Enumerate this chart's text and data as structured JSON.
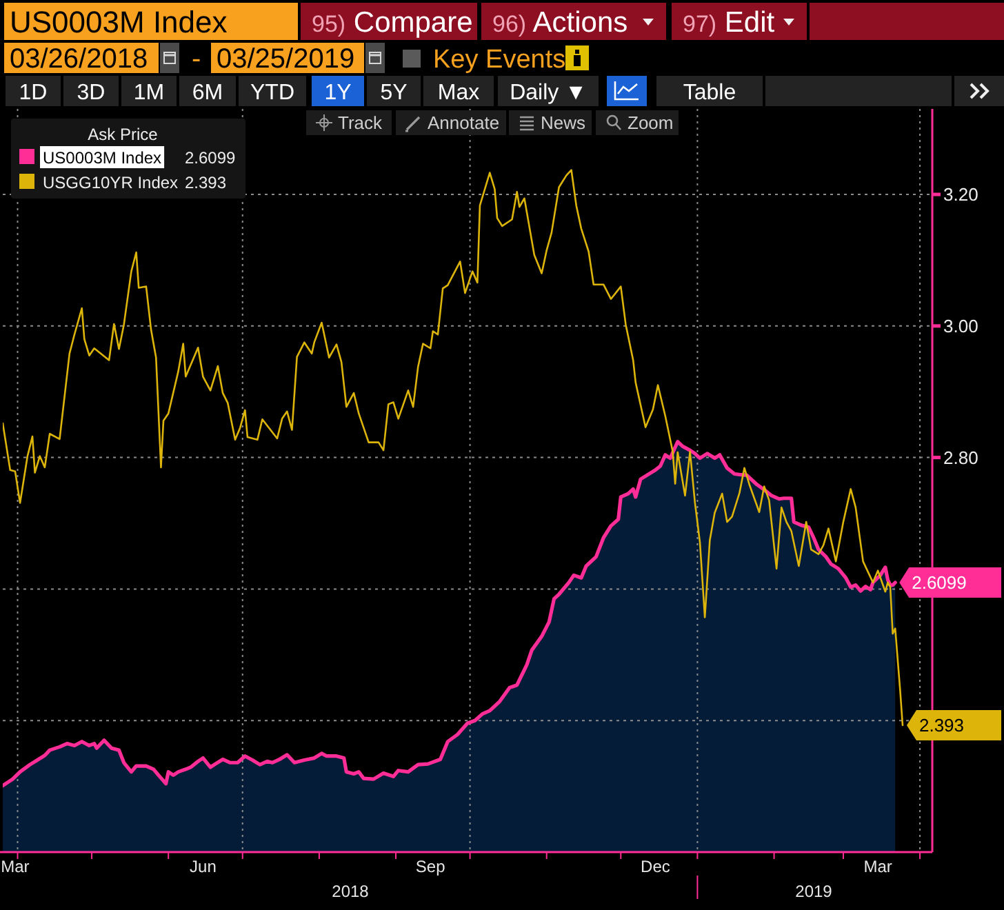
{
  "chart_data": {
    "type": "line",
    "legend_title": "Ask Price",
    "legend": "top left",
    "grid": "y",
    "xlim": [
      "2018-03-26",
      "2019-04-06"
    ],
    "ylim": [
      2.2,
      3.33
    ],
    "xticks": [
      {
        "value": "2018-03-31",
        "label": "Mar"
      },
      {
        "value": "2018-04-01",
        "label": null
      },
      {
        "value": "2018-05-01",
        "label": null
      },
      {
        "value": "2018-06-01",
        "label": null
      },
      {
        "value": "2018-06-15",
        "label": "Jun"
      },
      {
        "value": "2018-07-01",
        "label": null
      },
      {
        "value": "2018-08-01",
        "label": null
      },
      {
        "value": "2018-09-01",
        "label": null
      },
      {
        "value": "2018-09-15",
        "label": "Sep"
      },
      {
        "value": "2018-10-01",
        "label": null
      },
      {
        "value": "2018-11-01",
        "label": null
      },
      {
        "value": "2018-12-01",
        "label": null
      },
      {
        "value": "2018-12-15",
        "label": "Dec"
      },
      {
        "value": "2019-01-01",
        "label": null
      },
      {
        "value": "2019-02-01",
        "label": null
      },
      {
        "value": "2019-03-01",
        "label": null
      },
      {
        "value": "2019-03-15",
        "label": "Mar"
      },
      {
        "value": "2019-04-01",
        "label": null
      }
    ],
    "yticks": [
      {
        "value": 2.4,
        "label": null
      },
      {
        "value": 2.6,
        "label": null
      },
      {
        "value": 2.8,
        "label": "2.80"
      },
      {
        "value": 3.0,
        "label": "3.00"
      },
      {
        "value": 3.2,
        "label": "3.20"
      }
    ],
    "ref_lines": [
      {
        "axis": "x",
        "value": "2018-04-01",
        "color": "#8c8c8c",
        "line_style": "dotted"
      },
      {
        "axis": "x",
        "value": "2018-07-01",
        "color": "#8c8c8c",
        "line_style": "dotted"
      },
      {
        "axis": "x",
        "value": "2018-10-01",
        "color": "#8c8c8c",
        "line_style": "dotted"
      },
      {
        "axis": "x",
        "value": "2019-01-01",
        "color": "#8c8c8c",
        "line_style": "dotted"
      },
      {
        "axis": "x",
        "value": "2019-04-01",
        "color": "#8c8c8c",
        "line_style": "dotted"
      }
    ],
    "annotations": [
      "US0003M Index",
      "95) Compare",
      "96) Actions",
      "97) Edit",
      "03/26/2018",
      "-",
      "03/25/2019",
      "Key Events",
      "1D",
      "3D",
      "1M",
      "6M",
      "YTD",
      "1Y",
      "5Y",
      "Max",
      "Daily ▼",
      "Table",
      "Track",
      "Annotate",
      "News",
      "Zoom",
      "2018",
      "2019"
    ],
    "series": [
      {
        "type": "area",
        "color": "#041c38",
        "x": [
          "2018-03-26",
          "2018-03-30",
          "2018-04-02",
          "2018-04-06",
          "2018-04-09",
          "2018-04-12",
          "2018-04-14",
          "2018-04-18",
          "2018-04-21",
          "2018-04-24",
          "2018-04-27",
          "2018-04-30",
          "2018-05-02",
          "2018-05-03",
          "2018-05-06",
          "2018-05-09",
          "2018-05-12",
          "2018-05-14",
          "2018-05-17",
          "2018-05-19",
          "2018-05-23",
          "2018-05-26",
          "2018-05-28",
          "2018-05-31",
          "2018-06-01",
          "2018-06-03",
          "2018-06-05",
          "2018-06-08",
          "2018-06-10",
          "2018-06-13",
          "2018-06-15",
          "2018-06-18",
          "2018-06-20",
          "2018-06-23",
          "2018-06-26",
          "2018-06-29",
          "2018-07-02",
          "2018-07-05",
          "2018-07-08",
          "2018-07-11",
          "2018-07-13",
          "2018-07-16",
          "2018-07-19",
          "2018-07-22",
          "2018-07-26",
          "2018-07-30",
          "2018-08-02",
          "2018-08-04",
          "2018-08-08",
          "2018-08-11",
          "2018-08-12",
          "2018-08-15",
          "2018-08-17",
          "2018-08-19",
          "2018-08-23",
          "2018-08-27",
          "2018-08-31",
          "2018-09-02",
          "2018-09-06",
          "2018-09-10",
          "2018-09-14",
          "2018-09-19",
          "2018-09-22",
          "2018-09-26",
          "2018-09-30",
          "2018-10-03",
          "2018-10-06",
          "2018-10-09",
          "2018-10-13",
          "2018-10-17",
          "2018-10-20",
          "2018-10-24",
          "2018-10-26",
          "2018-10-30",
          "2018-11-02",
          "2018-11-04",
          "2018-11-06",
          "2018-11-10",
          "2018-11-12",
          "2018-11-15",
          "2018-11-17",
          "2018-11-21",
          "2018-11-24",
          "2018-11-27",
          "2018-11-30",
          "2018-12-01",
          "2018-12-04",
          "2018-12-06",
          "2018-12-07",
          "2018-12-09",
          "2018-12-12",
          "2018-12-15",
          "2018-12-17",
          "2018-12-19",
          "2018-12-21",
          "2018-12-24",
          "2018-12-26",
          "2018-12-29",
          "2018-12-31",
          "2019-01-02",
          "2019-01-05",
          "2019-01-08",
          "2019-01-10",
          "2019-01-13",
          "2019-01-16",
          "2019-01-18",
          "2019-01-21",
          "2019-01-25",
          "2019-01-28",
          "2019-01-31",
          "2019-02-03",
          "2019-02-05",
          "2019-02-08",
          "2019-02-09",
          "2019-02-12",
          "2019-02-15",
          "2019-02-17",
          "2019-02-19",
          "2019-02-22",
          "2019-02-24",
          "2019-02-27",
          "2019-03-02",
          "2019-03-04",
          "2019-03-06",
          "2019-03-08",
          "2019-03-10",
          "2019-03-12",
          "2019-03-13",
          "2019-03-16",
          "2019-03-18",
          "2019-03-19",
          "2019-03-20",
          "2019-03-21",
          "2019-03-22"
        ],
        "values": [
          2.301,
          2.311,
          2.322,
          2.333,
          2.34,
          2.347,
          2.355,
          2.36,
          2.365,
          2.362,
          2.368,
          2.362,
          2.365,
          2.358,
          2.37,
          2.358,
          2.355,
          2.336,
          2.322,
          2.331,
          2.331,
          2.326,
          2.317,
          2.304,
          2.322,
          2.317,
          2.322,
          2.326,
          2.329,
          2.338,
          2.343,
          2.329,
          2.334,
          2.341,
          2.336,
          2.336,
          2.346,
          2.34,
          2.333,
          2.338,
          2.336,
          2.341,
          2.348,
          2.336,
          2.34,
          2.343,
          2.35,
          2.346,
          2.346,
          2.343,
          2.322,
          2.319,
          2.322,
          2.312,
          2.311,
          2.32,
          2.315,
          2.324,
          2.322,
          2.333,
          2.334,
          2.341,
          2.368,
          2.379,
          2.396,
          2.4,
          2.41,
          2.415,
          2.429,
          2.45,
          2.454,
          2.485,
          2.507,
          2.528,
          2.55,
          2.585,
          2.592,
          2.61,
          2.621,
          2.617,
          2.635,
          2.649,
          2.678,
          2.696,
          2.706,
          2.74,
          2.745,
          2.752,
          2.74,
          2.767,
          2.774,
          2.781,
          2.787,
          2.804,
          2.799,
          2.824,
          2.817,
          2.811,
          2.806,
          2.799,
          2.806,
          2.799,
          2.804,
          2.784,
          2.775,
          2.774,
          2.773,
          2.759,
          2.751,
          2.742,
          2.737,
          2.738,
          2.738,
          2.702,
          2.697,
          2.694,
          2.678,
          2.66,
          2.649,
          2.638,
          2.631,
          2.617,
          2.603,
          2.606,
          2.597,
          2.604,
          2.599,
          2.61,
          2.621,
          2.633,
          2.614,
          2.606,
          2.606,
          2.6099
        ]
      },
      {
        "name": "US0003M Index",
        "type": "line",
        "color": "#ff2d96",
        "x": [
          "2018-03-26",
          "2018-03-30",
          "2018-04-02",
          "2018-04-06",
          "2018-04-09",
          "2018-04-12",
          "2018-04-14",
          "2018-04-18",
          "2018-04-21",
          "2018-04-24",
          "2018-04-27",
          "2018-04-30",
          "2018-05-02",
          "2018-05-03",
          "2018-05-06",
          "2018-05-09",
          "2018-05-12",
          "2018-05-14",
          "2018-05-17",
          "2018-05-19",
          "2018-05-23",
          "2018-05-26",
          "2018-05-28",
          "2018-05-31",
          "2018-06-01",
          "2018-06-03",
          "2018-06-05",
          "2018-06-08",
          "2018-06-10",
          "2018-06-13",
          "2018-06-15",
          "2018-06-18",
          "2018-06-20",
          "2018-06-23",
          "2018-06-26",
          "2018-06-29",
          "2018-07-02",
          "2018-07-05",
          "2018-07-08",
          "2018-07-11",
          "2018-07-13",
          "2018-07-16",
          "2018-07-19",
          "2018-07-22",
          "2018-07-26",
          "2018-07-30",
          "2018-08-02",
          "2018-08-04",
          "2018-08-08",
          "2018-08-11",
          "2018-08-12",
          "2018-08-15",
          "2018-08-17",
          "2018-08-19",
          "2018-08-23",
          "2018-08-27",
          "2018-08-31",
          "2018-09-02",
          "2018-09-06",
          "2018-09-10",
          "2018-09-14",
          "2018-09-19",
          "2018-09-22",
          "2018-09-26",
          "2018-09-30",
          "2018-10-03",
          "2018-10-06",
          "2018-10-09",
          "2018-10-13",
          "2018-10-17",
          "2018-10-20",
          "2018-10-24",
          "2018-10-26",
          "2018-10-30",
          "2018-11-02",
          "2018-11-04",
          "2018-11-06",
          "2018-11-10",
          "2018-11-12",
          "2018-11-15",
          "2018-11-17",
          "2018-11-21",
          "2018-11-24",
          "2018-11-27",
          "2018-11-30",
          "2018-12-01",
          "2018-12-04",
          "2018-12-06",
          "2018-12-07",
          "2018-12-09",
          "2018-12-12",
          "2018-12-15",
          "2018-12-17",
          "2018-12-19",
          "2018-12-21",
          "2018-12-24",
          "2018-12-26",
          "2018-12-29",
          "2018-12-31",
          "2019-01-02",
          "2019-01-05",
          "2019-01-08",
          "2019-01-10",
          "2019-01-13",
          "2019-01-16",
          "2019-01-18",
          "2019-01-21",
          "2019-01-25",
          "2019-01-28",
          "2019-01-31",
          "2019-02-03",
          "2019-02-05",
          "2019-02-08",
          "2019-02-09",
          "2019-02-12",
          "2019-02-15",
          "2019-02-17",
          "2019-02-19",
          "2019-02-22",
          "2019-02-24",
          "2019-02-27",
          "2019-03-02",
          "2019-03-04",
          "2019-03-06",
          "2019-03-08",
          "2019-03-10",
          "2019-03-12",
          "2019-03-13",
          "2019-03-16",
          "2019-03-18",
          "2019-03-19",
          "2019-03-20",
          "2019-03-21",
          "2019-03-22"
        ],
        "values": [
          2.301,
          2.311,
          2.322,
          2.333,
          2.34,
          2.347,
          2.355,
          2.36,
          2.365,
          2.362,
          2.368,
          2.362,
          2.365,
          2.358,
          2.37,
          2.358,
          2.355,
          2.336,
          2.322,
          2.331,
          2.331,
          2.326,
          2.317,
          2.304,
          2.322,
          2.317,
          2.322,
          2.326,
          2.329,
          2.338,
          2.343,
          2.329,
          2.334,
          2.341,
          2.336,
          2.336,
          2.346,
          2.34,
          2.333,
          2.338,
          2.336,
          2.341,
          2.348,
          2.336,
          2.34,
          2.343,
          2.35,
          2.346,
          2.346,
          2.343,
          2.322,
          2.319,
          2.322,
          2.312,
          2.311,
          2.32,
          2.315,
          2.324,
          2.322,
          2.333,
          2.334,
          2.341,
          2.368,
          2.379,
          2.396,
          2.4,
          2.41,
          2.415,
          2.429,
          2.45,
          2.454,
          2.485,
          2.507,
          2.528,
          2.55,
          2.585,
          2.592,
          2.61,
          2.621,
          2.617,
          2.635,
          2.649,
          2.678,
          2.696,
          2.706,
          2.74,
          2.745,
          2.752,
          2.74,
          2.767,
          2.774,
          2.781,
          2.787,
          2.804,
          2.799,
          2.824,
          2.817,
          2.811,
          2.806,
          2.799,
          2.806,
          2.799,
          2.804,
          2.784,
          2.775,
          2.774,
          2.773,
          2.759,
          2.751,
          2.742,
          2.737,
          2.738,
          2.738,
          2.702,
          2.697,
          2.694,
          2.678,
          2.66,
          2.649,
          2.638,
          2.631,
          2.617,
          2.603,
          2.606,
          2.597,
          2.604,
          2.599,
          2.61,
          2.621,
          2.633,
          2.614,
          2.606,
          2.606,
          2.6099
        ],
        "value_labels": [
          null,
          null,
          null,
          null,
          null,
          null,
          null,
          null,
          null,
          null,
          null,
          null,
          null,
          null,
          null,
          null,
          null,
          null,
          null,
          null,
          null,
          null,
          null,
          null,
          null,
          null,
          null,
          null,
          null,
          null,
          null,
          null,
          null,
          null,
          null,
          null,
          null,
          null,
          null,
          null,
          null,
          null,
          null,
          null,
          null,
          null,
          null,
          null,
          null,
          null,
          null,
          null,
          null,
          null,
          null,
          null,
          null,
          null,
          null,
          null,
          null,
          null,
          null,
          null,
          null,
          null,
          null,
          null,
          null,
          null,
          null,
          null,
          null,
          null,
          null,
          null,
          null,
          null,
          null,
          null,
          null,
          null,
          null,
          null,
          null,
          null,
          null,
          null,
          null,
          null,
          null,
          null,
          null,
          null,
          null,
          null,
          null,
          null,
          null,
          null,
          null,
          null,
          null,
          null,
          null,
          null,
          null,
          null,
          null,
          null,
          null,
          null,
          null,
          null,
          null,
          null,
          null,
          null,
          null,
          null,
          null,
          null,
          null,
          null,
          null,
          null,
          null,
          null,
          null,
          null,
          null,
          null,
          null,
          "2.6099"
        ]
      },
      {
        "name": "USGG10YR Index",
        "type": "line",
        "color": "#dcb40a",
        "x": [
          "2018-03-26",
          "2018-03-29",
          "2018-03-31",
          "2018-04-02",
          "2018-04-05",
          "2018-04-07",
          "2018-04-08",
          "2018-04-10",
          "2018-04-12",
          "2018-04-14",
          "2018-04-18",
          "2018-04-22",
          "2018-04-24",
          "2018-04-27",
          "2018-04-28",
          "2018-04-30",
          "2018-05-02",
          "2018-05-08",
          "2018-05-10",
          "2018-05-12",
          "2018-05-14",
          "2018-05-17",
          "2018-05-19",
          "2018-05-20",
          "2018-05-23",
          "2018-05-25",
          "2018-05-27",
          "2018-05-29",
          "2018-05-30",
          "2018-06-01",
          "2018-06-05",
          "2018-06-07",
          "2018-06-08",
          "2018-06-13",
          "2018-06-15",
          "2018-06-18",
          "2018-06-21",
          "2018-06-23",
          "2018-06-25",
          "2018-06-28",
          "2018-06-30",
          "2018-07-02",
          "2018-07-03",
          "2018-07-07",
          "2018-07-09",
          "2018-07-15",
          "2018-07-17",
          "2018-07-19",
          "2018-07-21",
          "2018-07-23",
          "2018-07-26",
          "2018-07-29",
          "2018-07-30",
          "2018-08-02",
          "2018-08-05",
          "2018-08-08",
          "2018-08-10",
          "2018-08-12",
          "2018-08-15",
          "2018-08-17",
          "2018-08-21",
          "2018-08-25",
          "2018-08-27",
          "2018-08-29",
          "2018-08-31",
          "2018-09-02",
          "2018-09-06",
          "2018-09-08",
          "2018-09-10",
          "2018-09-12",
          "2018-09-15",
          "2018-09-16",
          "2018-09-18",
          "2018-09-20",
          "2018-09-22",
          "2018-09-27",
          "2018-09-29",
          "2018-10-02",
          "2018-10-04",
          "2018-10-05",
          "2018-10-09",
          "2018-10-11",
          "2018-10-12",
          "2018-10-14",
          "2018-10-18",
          "2018-10-20",
          "2018-10-21",
          "2018-10-23",
          "2018-10-27",
          "2018-10-30",
          "2018-11-01",
          "2018-11-03",
          "2018-11-06",
          "2018-11-09",
          "2018-11-11",
          "2018-11-13",
          "2018-11-15",
          "2018-11-18",
          "2018-11-20",
          "2018-11-24",
          "2018-11-27",
          "2018-12-01",
          "2018-12-03",
          "2018-12-06",
          "2018-12-07",
          "2018-12-11",
          "2018-12-14",
          "2018-12-16",
          "2018-12-19",
          "2018-12-22",
          "2018-12-23",
          "2018-12-24",
          "2018-12-27",
          "2018-12-29",
          "2018-12-31",
          "2019-01-02",
          "2019-01-04",
          "2019-01-06",
          "2019-01-08",
          "2019-01-11",
          "2019-01-13",
          "2019-01-15",
          "2019-01-18",
          "2019-01-20",
          "2019-01-22",
          "2019-01-26",
          "2019-01-28",
          "2019-01-30",
          "2019-02-02",
          "2019-02-04",
          "2019-02-06",
          "2019-02-08",
          "2019-02-11",
          "2019-02-14",
          "2019-02-16",
          "2019-02-19",
          "2019-02-21",
          "2019-02-23",
          "2019-02-26",
          "2019-03-01",
          "2019-03-04",
          "2019-03-06",
          "2019-03-09",
          "2019-03-13",
          "2019-03-15",
          "2019-03-18",
          "2019-03-19",
          "2019-03-20",
          "2019-03-21",
          "2019-03-22",
          "2019-03-24",
          "2019-03-25"
        ],
        "values": [
          2.852,
          2.781,
          2.779,
          2.731,
          2.802,
          2.832,
          2.777,
          2.802,
          2.785,
          2.836,
          2.828,
          2.958,
          2.987,
          3.027,
          2.98,
          2.955,
          2.966,
          2.948,
          3.003,
          2.965,
          3.002,
          3.083,
          3.112,
          3.058,
          3.06,
          2.994,
          2.952,
          2.785,
          2.856,
          2.867,
          2.931,
          2.973,
          2.923,
          2.967,
          2.923,
          2.902,
          2.939,
          2.898,
          2.883,
          2.827,
          2.845,
          2.872,
          2.831,
          2.827,
          2.858,
          2.829,
          2.859,
          2.87,
          2.842,
          2.953,
          2.975,
          2.958,
          2.975,
          3.005,
          2.952,
          2.972,
          2.945,
          2.877,
          2.898,
          2.867,
          2.823,
          2.823,
          2.811,
          2.881,
          2.884,
          2.859,
          2.902,
          2.877,
          2.938,
          2.973,
          2.966,
          2.992,
          2.987,
          3.057,
          3.062,
          3.098,
          3.05,
          3.083,
          3.066,
          3.183,
          3.233,
          3.208,
          3.164,
          3.152,
          3.162,
          3.204,
          3.181,
          3.194,
          3.108,
          3.08,
          3.115,
          3.142,
          3.211,
          3.229,
          3.237,
          3.183,
          3.148,
          3.113,
          3.063,
          3.063,
          3.041,
          3.06,
          3.002,
          2.948,
          2.914,
          2.846,
          2.873,
          2.91,
          2.863,
          2.809,
          2.76,
          2.808,
          2.742,
          2.809,
          2.731,
          2.671,
          2.557,
          2.674,
          2.716,
          2.745,
          2.702,
          2.71,
          2.746,
          2.784,
          2.759,
          2.717,
          2.756,
          2.735,
          2.631,
          2.724,
          2.702,
          2.688,
          2.635,
          2.702,
          2.66,
          2.653,
          2.667,
          2.692,
          2.642,
          2.702,
          2.752,
          2.724,
          2.642,
          2.61,
          2.628,
          2.596,
          2.61,
          2.603,
          2.532,
          2.54,
          2.446,
          2.393
        ],
        "value_labels": [
          null,
          null,
          null,
          null,
          null,
          null,
          null,
          null,
          null,
          null,
          null,
          null,
          null,
          null,
          null,
          null,
          null,
          null,
          null,
          null,
          null,
          null,
          null,
          null,
          null,
          null,
          null,
          null,
          null,
          null,
          null,
          null,
          null,
          null,
          null,
          null,
          null,
          null,
          null,
          null,
          null,
          null,
          null,
          null,
          null,
          null,
          null,
          null,
          null,
          null,
          null,
          null,
          null,
          null,
          null,
          null,
          null,
          null,
          null,
          null,
          null,
          null,
          null,
          null,
          null,
          null,
          null,
          null,
          null,
          null,
          null,
          null,
          null,
          null,
          null,
          null,
          null,
          null,
          null,
          null,
          null,
          null,
          null,
          null,
          null,
          null,
          null,
          null,
          null,
          null,
          null,
          null,
          null,
          null,
          null,
          null,
          null,
          null,
          null,
          null,
          null,
          null,
          null,
          null,
          null,
          null,
          null,
          null,
          null,
          null,
          null,
          null,
          null,
          null,
          null,
          null,
          null,
          null,
          null,
          null,
          null,
          null,
          null,
          null,
          null,
          null,
          null,
          null,
          null,
          null,
          null,
          null,
          null,
          null,
          null,
          null,
          null,
          null,
          null,
          null,
          null,
          null,
          null,
          null,
          null,
          null,
          null,
          null,
          null,
          null,
          null,
          "2.393"
        ]
      }
    ]
  }
}
